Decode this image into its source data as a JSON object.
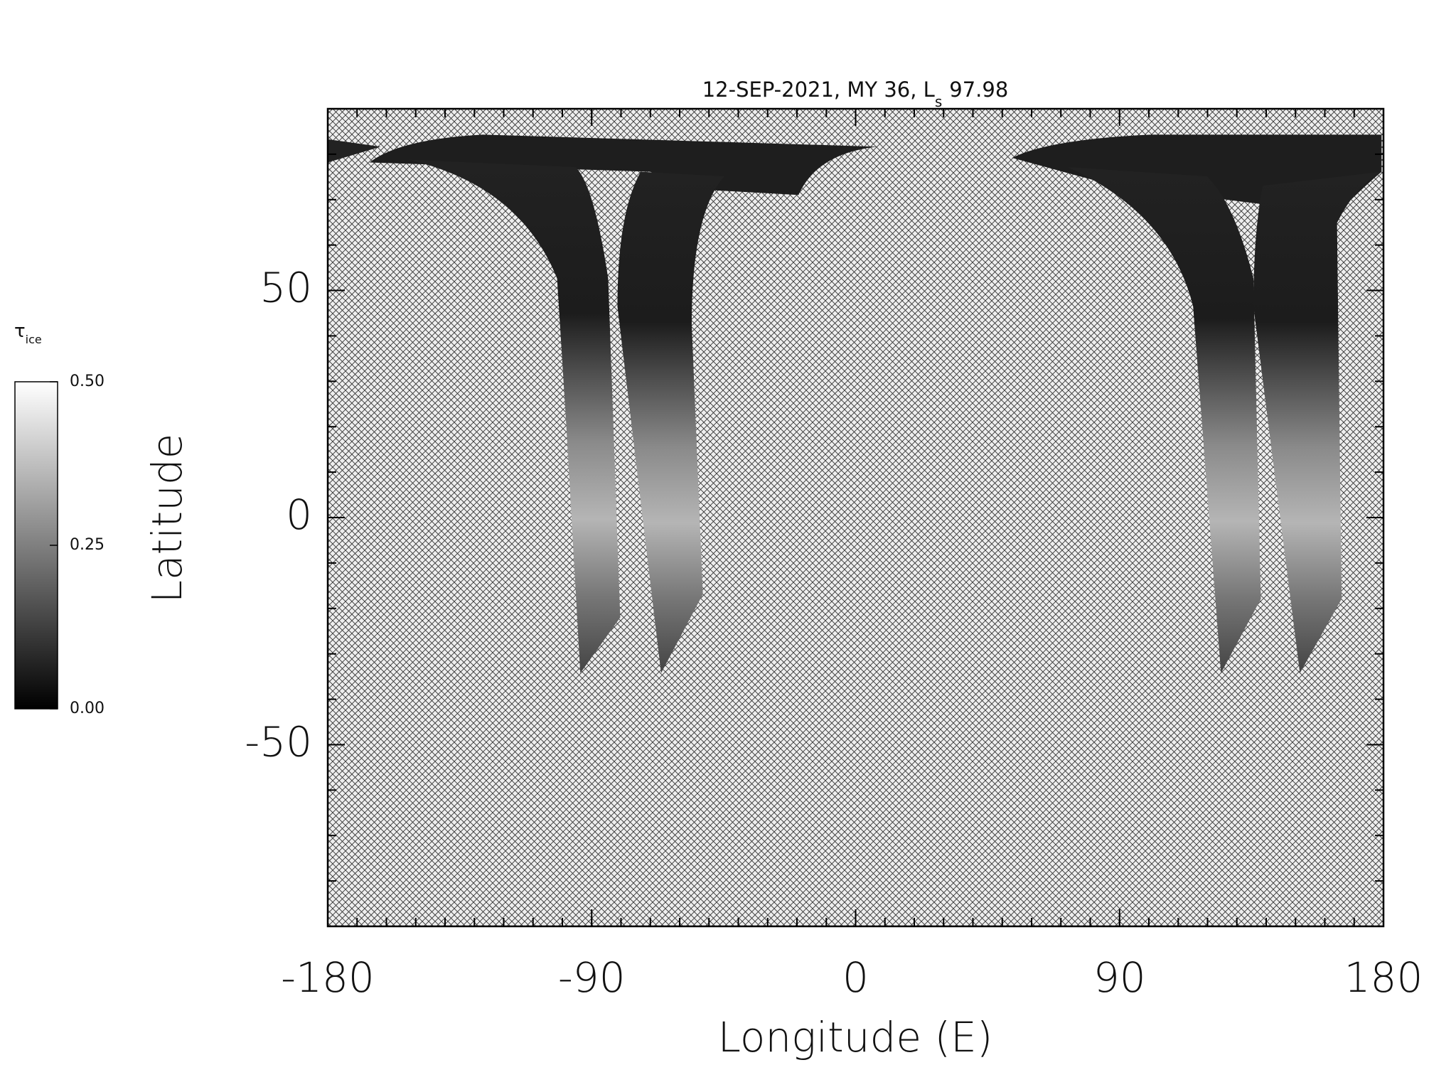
{
  "chart_data": {
    "type": "map",
    "title": {
      "text": "12-SEP-2021, MY 36,  L",
      "subscript": "s",
      "value": "97.98"
    },
    "xlabel": "Longitude (E)",
    "ylabel": "Latitude",
    "xlim": [
      -180,
      180
    ],
    "xticks": [
      -180,
      -90,
      0,
      90,
      180
    ],
    "ylim": [
      -90,
      90
    ],
    "yticks": [
      -50,
      0,
      50
    ],
    "colorbar": {
      "label": "τ",
      "label_subscript": "ice",
      "lim": [
        0,
        0.5
      ],
      "ticks": [
        {
          "value": 0,
          "label": "0.00"
        },
        {
          "value": 0.25,
          "label": "0.25"
        },
        {
          "value": 0.5,
          "label": "0.50"
        }
      ]
    }
  }
}
